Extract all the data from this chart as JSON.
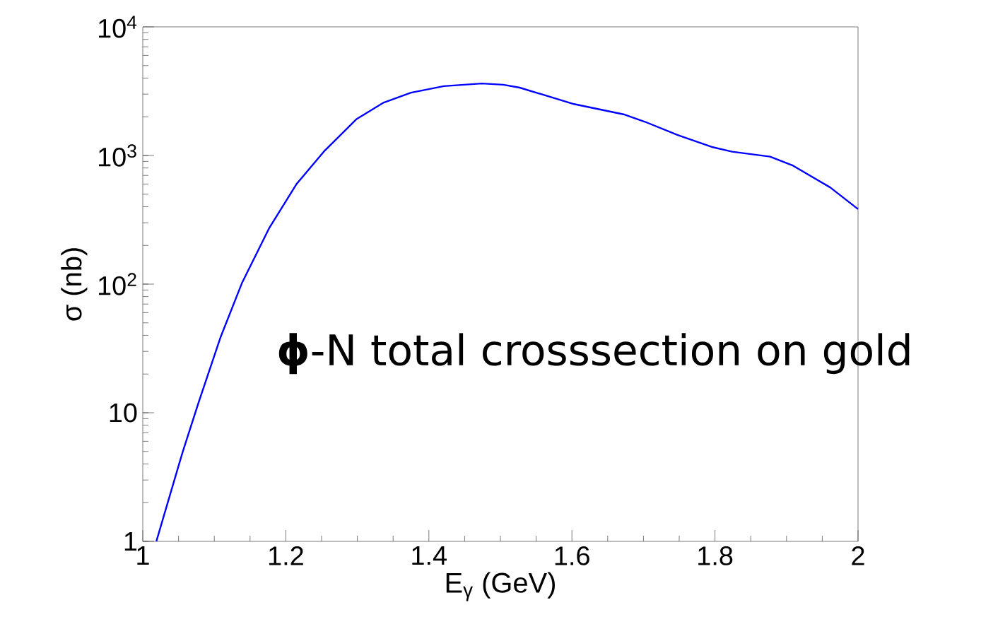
{
  "chart_data": {
    "type": "line",
    "xlabel": "E$_{γ}$ (GeV)",
    "ylabel": "σ (nb)",
    "log": "y",
    "xlim": [
      1,
      2
    ],
    "xticks": [
      1,
      1.2,
      1.4,
      1.6,
      1.8,
      2
    ],
    "ylim": [
      1,
      10000
    ],
    "yticks": [
      1,
      10,
      {
        "value": 100,
        "label": "10$^{2}$"
      },
      {
        "value": 1000,
        "label": "10$^{3}$"
      },
      {
        "value": 10000,
        "label": "10$^{4}$"
      }
    ],
    "marker": "none",
    "line_style": "solid",
    "annotations": [
      "**ϕ**-N total crosssection on gold"
    ],
    "series": [
      {
        "color": "#0000ff",
        "x": [
          1.019,
          1.036,
          1.056,
          1.078,
          1.109,
          1.139,
          1.177,
          1.215,
          1.253,
          1.299,
          1.337,
          1.375,
          1.421,
          1.474,
          1.504,
          1.527,
          1.603,
          1.672,
          1.702,
          1.748,
          1.797,
          1.824,
          1.877,
          1.908,
          1.961,
          2.0
        ],
        "values": [
          1,
          2.1,
          5,
          12,
          39,
          103,
          274,
          600,
          1070,
          1920,
          2580,
          3080,
          3460,
          3630,
          3550,
          3370,
          2510,
          2090,
          1830,
          1440,
          1160,
          1070,
          980,
          840,
          565,
          383
        ]
      }
    ]
  }
}
